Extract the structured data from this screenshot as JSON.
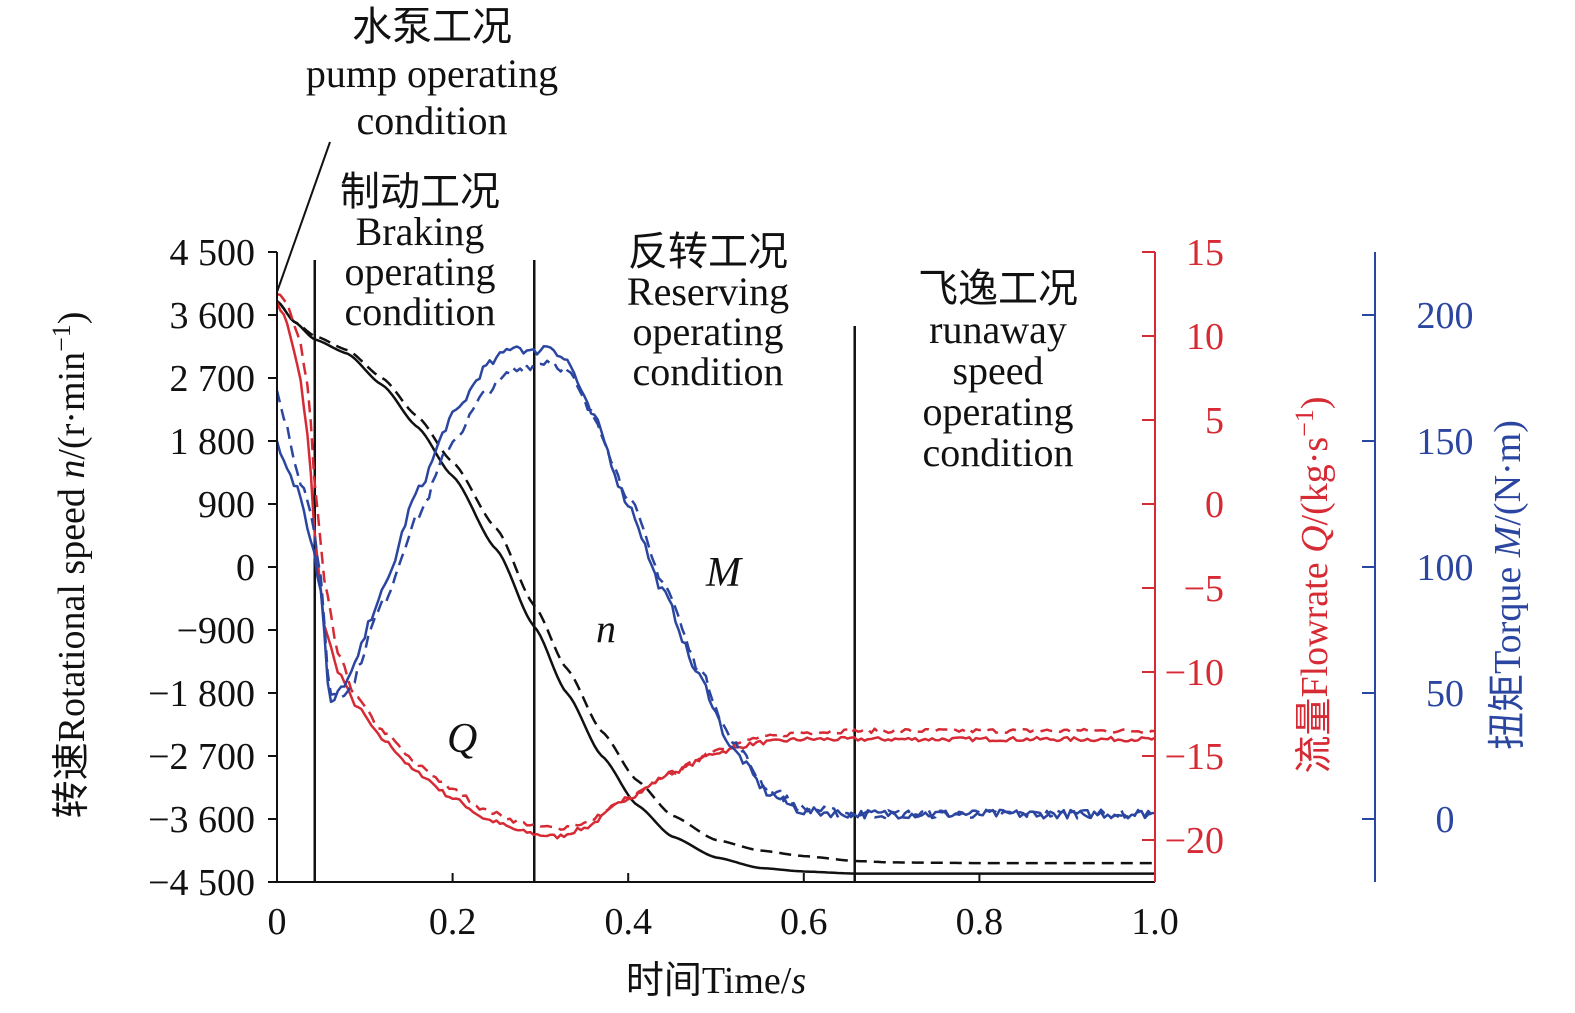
{
  "chart_data": {
    "type": "line",
    "x_axis": {
      "label_cn": "时间",
      "label_en": "Time/",
      "label_unit": "s",
      "range": [
        0,
        1.0
      ],
      "ticks": [
        "0",
        "0.2",
        "0.4",
        "0.6",
        "0.8",
        "1.0"
      ],
      "tick_values": [
        0,
        0.2,
        0.4,
        0.6,
        0.8,
        1.0
      ]
    },
    "y_left": {
      "label_cn": "转速",
      "label_en": "Rotational speed ",
      "label_var": "n",
      "label_unit": "/(r·min",
      "label_sup": "−1",
      "label_close": ")",
      "range": [
        -4500,
        4500
      ],
      "ticks": [
        "4 500",
        "3 600",
        "2 700",
        "1 800",
        "900",
        "0",
        "−900",
        "−1 800",
        "−2 700",
        "−3 600",
        "−4 500"
      ],
      "tick_values": [
        4500,
        3600,
        2700,
        1800,
        900,
        0,
        -900,
        -1800,
        -2700,
        -3600,
        -4500
      ]
    },
    "y_right1": {
      "label_cn": "流量",
      "label_en": "Flowrate ",
      "label_var": "Q",
      "label_unit": "/(kg·s",
      "label_sup": "−1",
      "label_close": ")",
      "range": [
        -22.5,
        15
      ],
      "ticks": [
        "15",
        "10",
        "5",
        "0",
        "−5",
        "−10",
        "−15",
        "−20"
      ],
      "tick_values": [
        15,
        10,
        5,
        0,
        -5,
        -10,
        -15,
        -20
      ],
      "color": "#d62b35"
    },
    "y_right2": {
      "label_cn": "扭矩",
      "label_en": "Torque ",
      "label_var": "M",
      "label_unit": "/(N·m)",
      "range": [
        -25,
        225
      ],
      "ticks": [
        "200",
        "150",
        "100",
        "50",
        "0"
      ],
      "tick_values": [
        200,
        150,
        100,
        50,
        0
      ],
      "color": "#2b46a0"
    },
    "regions": [
      {
        "name": "pump",
        "label_cn": "水泵工况",
        "label_en": [
          "pump operating",
          "condition"
        ]
      },
      {
        "name": "braking",
        "label_cn": "制动工况",
        "label_en": [
          "Braking",
          "operating",
          "condition"
        ]
      },
      {
        "name": "reversing",
        "label_cn": "反转工况",
        "label_en": [
          "Reserving",
          "operating",
          "condition"
        ]
      },
      {
        "name": "runaway",
        "label_cn": "飞逸工况",
        "label_en": [
          "runaway",
          "speed",
          "operating",
          "condition"
        ]
      }
    ],
    "boundaries": [
      0.043,
      0.293,
      0.658
    ],
    "curve_labels": {
      "n": "n",
      "Q": "Q",
      "M": "M"
    },
    "series": [
      {
        "name": "n (solid)",
        "axis": "left",
        "color": "#111111",
        "dash": false,
        "x": [
          0,
          0.02,
          0.043,
          0.08,
          0.12,
          0.16,
          0.2,
          0.25,
          0.293,
          0.33,
          0.37,
          0.41,
          0.45,
          0.5,
          0.55,
          0.6,
          0.658,
          0.7,
          0.8,
          0.9,
          1.0
        ],
        "y": [
          3800,
          3500,
          3250,
          3050,
          2600,
          2000,
          1300,
          250,
          -850,
          -1800,
          -2700,
          -3400,
          -3850,
          -4150,
          -4300,
          -4350,
          -4380,
          -4380,
          -4380,
          -4380,
          -4380
        ]
      },
      {
        "name": "n (dashed)",
        "axis": "left",
        "color": "#111111",
        "dash": true,
        "x": [
          0,
          0.02,
          0.043,
          0.08,
          0.12,
          0.16,
          0.2,
          0.25,
          0.293,
          0.33,
          0.37,
          0.41,
          0.45,
          0.5,
          0.55,
          0.6,
          0.658,
          0.7,
          0.8,
          0.9,
          1.0
        ],
        "y": [
          3800,
          3500,
          3300,
          3100,
          2700,
          2150,
          1500,
          550,
          -550,
          -1450,
          -2350,
          -3050,
          -3550,
          -3900,
          -4050,
          -4130,
          -4200,
          -4220,
          -4230,
          -4230,
          -4230
        ]
      },
      {
        "name": "Q (solid)",
        "axis": "right1",
        "color": "#d62b35",
        "dash": false,
        "x": [
          0,
          0.01,
          0.025,
          0.035,
          0.045,
          0.055,
          0.07,
          0.09,
          0.12,
          0.16,
          0.2,
          0.24,
          0.28,
          0.3,
          0.32,
          0.35,
          0.4,
          0.45,
          0.5,
          0.55,
          0.6,
          0.658,
          0.7,
          0.8,
          0.9,
          1.0
        ],
        "y": [
          12,
          11,
          8,
          4,
          -3,
          -7.5,
          -10,
          -12,
          -14,
          -16,
          -17.5,
          -18.8,
          -19.5,
          -19.7,
          -19.8,
          -19.3,
          -17.5,
          -16,
          -14.8,
          -14.2,
          -14,
          -14,
          -14,
          -14,
          -14,
          -14
        ]
      },
      {
        "name": "Q (dashed)",
        "axis": "right1",
        "color": "#d62b35",
        "dash": true,
        "x": [
          0,
          0.01,
          0.025,
          0.035,
          0.045,
          0.055,
          0.07,
          0.09,
          0.12,
          0.16,
          0.2,
          0.24,
          0.28,
          0.3,
          0.32,
          0.35,
          0.4,
          0.45,
          0.5,
          0.55,
          0.6,
          0.658,
          0.7,
          0.8,
          0.9,
          1.0
        ],
        "y": [
          12.5,
          12,
          10,
          7,
          0,
          -5,
          -9,
          -11.5,
          -13.5,
          -15.5,
          -17,
          -18.3,
          -19,
          -19.2,
          -19.3,
          -19,
          -17.5,
          -16,
          -14.6,
          -13.9,
          -13.6,
          -13.5,
          -13.5,
          -13.5,
          -13.5,
          -13.5
        ]
      },
      {
        "name": "M (solid)",
        "axis": "right2",
        "color": "#2b46a0",
        "dash": false,
        "x": [
          0,
          0.01,
          0.025,
          0.04,
          0.05,
          0.06,
          0.08,
          0.12,
          0.16,
          0.2,
          0.24,
          0.27,
          0.29,
          0.31,
          0.33,
          0.36,
          0.4,
          0.44,
          0.48,
          0.52,
          0.56,
          0.6,
          0.658,
          0.7,
          0.8,
          0.9,
          1.0
        ],
        "y": [
          150,
          140,
          130,
          110,
          90,
          45,
          55,
          90,
          130,
          160,
          180,
          188,
          185,
          188,
          182,
          160,
          125,
          90,
          57,
          27,
          10,
          3,
          2,
          2,
          2,
          2,
          2
        ]
      },
      {
        "name": "M (dashed)",
        "axis": "right2",
        "color": "#2b46a0",
        "dash": true,
        "x": [
          0,
          0.01,
          0.025,
          0.04,
          0.05,
          0.06,
          0.08,
          0.12,
          0.16,
          0.2,
          0.24,
          0.27,
          0.29,
          0.31,
          0.33,
          0.36,
          0.4,
          0.44,
          0.48,
          0.52,
          0.56,
          0.6,
          0.658,
          0.7,
          0.8,
          0.9,
          1.0
        ],
        "y": [
          170,
          158,
          135,
          120,
          95,
          50,
          50,
          85,
          120,
          150,
          170,
          178,
          180,
          182,
          178,
          160,
          128,
          94,
          60,
          30,
          12,
          4,
          2,
          2,
          2,
          2,
          2
        ]
      }
    ]
  }
}
